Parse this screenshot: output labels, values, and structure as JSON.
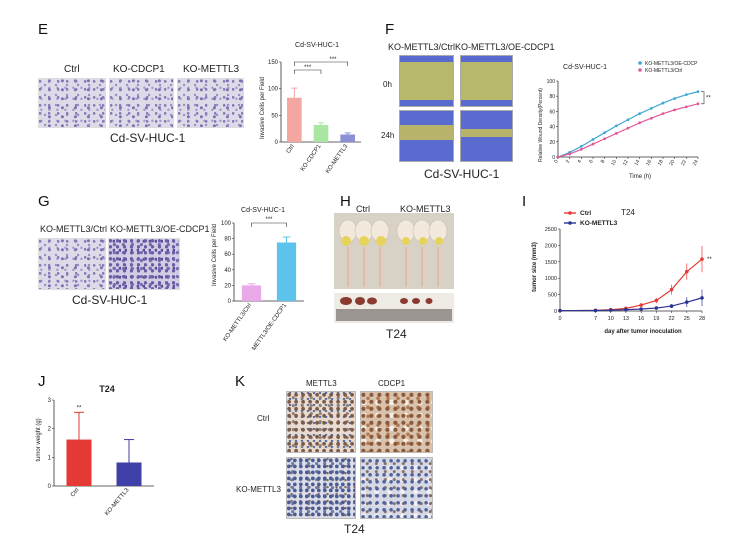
{
  "panels": {
    "E": {
      "letter": "E",
      "images": [
        "Ctrl",
        "KO-CDCP1",
        "KO-METTL3"
      ],
      "caption": "Cd-SV-HUC-1"
    },
    "F": {
      "letter": "F",
      "columns": [
        "KO-METTL3/Ctrl",
        "KO-METTL3/OE-CDCP1"
      ],
      "rows": [
        "0h",
        "24h"
      ],
      "caption": "Cd-SV-HUC-1"
    },
    "G": {
      "letter": "G",
      "images": [
        "KO-METTL3/Ctrl",
        "KO-METTL3/OE-CDCP1"
      ],
      "caption": "Cd-SV-HUC-1"
    },
    "H": {
      "letter": "H",
      "groups": [
        "Ctrl",
        "KO-METTL3"
      ],
      "caption": "T24"
    },
    "I": {
      "letter": "I"
    },
    "J": {
      "letter": "J"
    },
    "K": {
      "letter": "K",
      "columns": [
        "METTL3",
        "CDCP1"
      ],
      "rows": [
        "Ctrl",
        "KO-METTL3"
      ],
      "caption": "T24"
    }
  },
  "chart_data": [
    {
      "id": "E-bar",
      "type": "bar",
      "title": "Cd-SV-HUC-1",
      "ylabel": "Invasive Cells per Field",
      "categories": [
        "Ctrl",
        "KO-CDCP1",
        "KO-METTL3"
      ],
      "values": [
        83,
        32,
        14
      ],
      "errors": [
        18,
        4,
        3
      ],
      "colors": [
        "#f4a6a1",
        "#a8e6a2",
        "#8b8fd6"
      ],
      "ylim": [
        0,
        150
      ],
      "yticks": [
        0,
        50,
        100,
        150
      ],
      "significance": [
        "***",
        "***"
      ]
    },
    {
      "id": "F-line",
      "type": "line",
      "title": "Cd-SV-HUC-1",
      "xlabel": "Time (h)",
      "ylabel": "Relative Wound Density(Percent)",
      "x": [
        0,
        2,
        4,
        6,
        8,
        10,
        12,
        14,
        16,
        18,
        20,
        22,
        24
      ],
      "ylim": [
        0,
        100
      ],
      "yticks": [
        0,
        20,
        40,
        60,
        80,
        100
      ],
      "series": [
        {
          "name": "KO-METTL3/OE-CDCP",
          "color": "#3fa7d6",
          "values": [
            0,
            6,
            14,
            23,
            32,
            41,
            49,
            57,
            64,
            71,
            77,
            82,
            86
          ]
        },
        {
          "name": "KO-METTL3/Ctrl",
          "color": "#e05a9a",
          "values": [
            0,
            4,
            10,
            17,
            24,
            31,
            38,
            45,
            51,
            57,
            62,
            66,
            70
          ]
        }
      ],
      "significance": "**"
    },
    {
      "id": "G-bar",
      "type": "bar",
      "title": "Cd-SV-HUC-1",
      "ylabel": "Invasive Cells per Field",
      "categories": [
        "KO-METTL3/Ctrl",
        "KO-METTL3/OE-CDCP1"
      ],
      "values": [
        20,
        75
      ],
      "errors": [
        2,
        7
      ],
      "colors": [
        "#e9a8e8",
        "#5ec3ec"
      ],
      "ylim": [
        0,
        100
      ],
      "yticks": [
        0,
        20,
        40,
        60,
        80,
        100
      ],
      "significance": [
        "***"
      ]
    },
    {
      "id": "I-line",
      "type": "line",
      "title": "T24",
      "xlabel": "day after tumor inoculation",
      "ylabel": "tumor size (mm3)",
      "x": [
        0,
        7,
        10,
        13,
        16,
        19,
        22,
        25,
        28
      ],
      "ylim": [
        0,
        2500
      ],
      "yticks": [
        0,
        500,
        1000,
        1500,
        2000,
        2500
      ],
      "series": [
        {
          "name": "Ctrl",
          "color": "#e53935",
          "values": [
            10,
            20,
            40,
            80,
            180,
            320,
            650,
            1200,
            1580
          ],
          "errors": [
            0,
            5,
            10,
            20,
            40,
            80,
            150,
            250,
            400
          ]
        },
        {
          "name": "KO-METTL3",
          "color": "#283593",
          "values": [
            10,
            15,
            25,
            40,
            60,
            90,
            150,
            270,
            400
          ],
          "errors": [
            0,
            5,
            8,
            10,
            20,
            30,
            60,
            150,
            250
          ]
        }
      ],
      "significance": "**"
    },
    {
      "id": "J-bar",
      "type": "bar",
      "title": "T24",
      "ylabel": "tumor weight (g)",
      "categories": [
        "Ctrl",
        "KO-METTL3"
      ],
      "values": [
        1.62,
        0.82
      ],
      "errors": [
        0.95,
        0.8
      ],
      "colors": [
        "#e53935",
        "#3f3fa8"
      ],
      "ylim": [
        0,
        3
      ],
      "yticks": [
        0,
        1,
        2,
        3
      ],
      "significance": [
        "**"
      ]
    }
  ]
}
